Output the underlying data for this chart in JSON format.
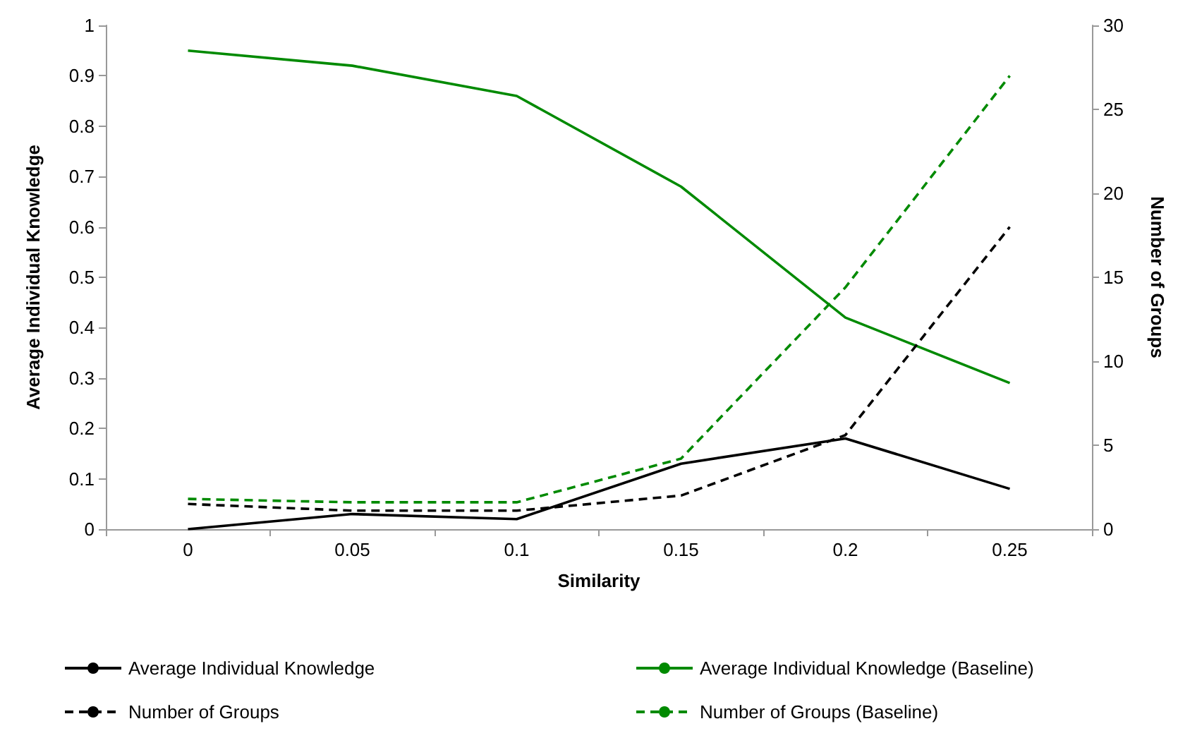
{
  "chart_data": {
    "type": "line",
    "xlabel": "Similarity",
    "ylabel": "Average Individual Knowledge",
    "y2label": "Number of Groups",
    "categories": [
      "0",
      "0.05",
      "0.1",
      "0.15",
      "0.2",
      "0.25"
    ],
    "series": [
      {
        "name": "Average Individual Knowledge",
        "color": "#000000",
        "line_style": "solid",
        "values": [
          0,
          0.03,
          0.02,
          0.13,
          0.18,
          0.08
        ]
      },
      {
        "name": "Average Individual Knowledge (Baseline)",
        "color": "#008a00",
        "line_style": "solid",
        "values": [
          0.95,
          0.92,
          0.86,
          0.68,
          0.42,
          0.29
        ]
      },
      {
        "name": "Number of Groups",
        "color": "#000000",
        "line_style": "dashed",
        "axis": "y2",
        "values": [
          1.5,
          1.1,
          1.1,
          2.0,
          5.6,
          18.0
        ]
      },
      {
        "name": "Number of Groups (Baseline)",
        "color": "#008a00",
        "line_style": "dashed",
        "axis": "y2",
        "values": [
          1.8,
          1.6,
          1.6,
          4.2,
          14.4,
          27.0
        ]
      }
    ],
    "ylim": [
      0,
      1
    ],
    "yticks": [
      0,
      0.1,
      0.2,
      0.3,
      0.4,
      0.5,
      0.6,
      0.7,
      0.8,
      0.9,
      1
    ],
    "y2lim": [
      0,
      30
    ],
    "y2ticks": [
      0,
      5,
      10,
      15,
      20,
      25,
      30
    ],
    "marker": "none",
    "grid": false,
    "legend": "bottom"
  }
}
